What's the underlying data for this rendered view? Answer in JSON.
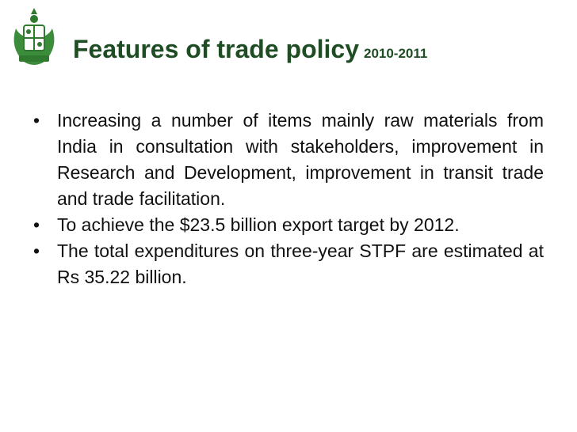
{
  "header": {
    "title": "Features of trade policy",
    "subtitle": "2010-2011"
  },
  "bullets": [
    "Increasing a number of items mainly raw materials from India in consultation with stakeholders, improvement in Research and Development, improvement in transit trade and trade facilitation.",
    "To achieve the $23.5 billion export target by 2012.",
    "The total expenditures on three-year STPF are estimated at Rs 35.22 billion."
  ]
}
